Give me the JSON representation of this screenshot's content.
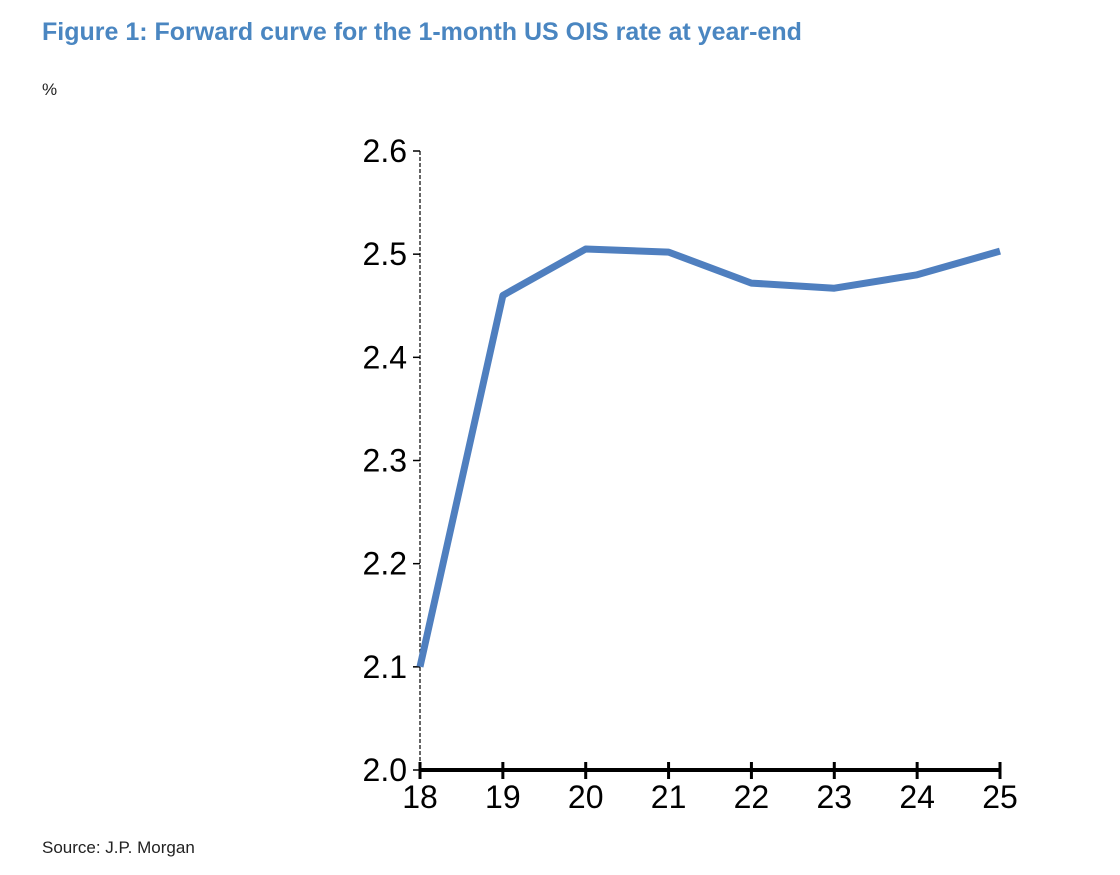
{
  "figure": {
    "title": "Figure 1: Forward curve for the 1-month US OIS rate at year-end",
    "unit": "%",
    "source": "Source: J.P. Morgan"
  },
  "colors": {
    "title": "#4a86c1",
    "series": "#4f7fbf",
    "axis": "#000000"
  },
  "chart_data": {
    "type": "line",
    "x": [
      "18",
      "19",
      "20",
      "21",
      "22",
      "23",
      "24",
      "25"
    ],
    "series": [
      {
        "values": [
          2.1,
          2.46,
          2.505,
          2.502,
          2.472,
          2.467,
          2.48,
          2.503
        ]
      }
    ],
    "ylim": [
      2.0,
      2.6
    ],
    "yticks": [
      "2.0",
      "2.1",
      "2.2",
      "2.3",
      "2.4",
      "2.5",
      "2.6"
    ],
    "xlabel": "",
    "ylabel": "%",
    "grid": false,
    "legend": "none"
  }
}
